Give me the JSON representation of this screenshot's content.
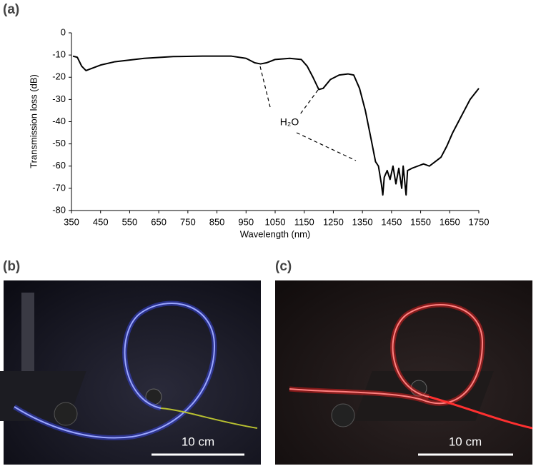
{
  "chart_data": {
    "type": "line",
    "panel_label": "(a)",
    "xlabel": "Wavelength (nm)",
    "ylabel": "Transmission loss (dB)",
    "annotation": "H₂O",
    "x": [
      355,
      370,
      385,
      400,
      420,
      450,
      500,
      600,
      700,
      800,
      900,
      950,
      980,
      1000,
      1020,
      1050,
      1100,
      1140,
      1160,
      1180,
      1200,
      1215,
      1240,
      1270,
      1300,
      1320,
      1340,
      1360,
      1380,
      1395,
      1405,
      1415,
      1420,
      1425,
      1435,
      1445,
      1455,
      1465,
      1475,
      1485,
      1490,
      1500,
      1505,
      1520,
      1540,
      1560,
      1580,
      1600,
      1620,
      1640,
      1660,
      1680,
      1700,
      1720,
      1750
    ],
    "color": "#000000",
    "values": [
      -10.5,
      -11,
      -15,
      -17,
      -16,
      -14.5,
      -13,
      -11.5,
      -10.7,
      -10.5,
      -10.5,
      -11.5,
      -13.5,
      -14,
      -13.5,
      -12,
      -11.5,
      -12,
      -15,
      -20,
      -25.5,
      -25,
      -21,
      -19,
      -18.5,
      -19,
      -25,
      -35,
      -48,
      -58,
      -60,
      -68,
      -73,
      -65,
      -62,
      -66,
      -60,
      -68,
      -61,
      -70,
      -60,
      -73,
      -62,
      -61,
      -60,
      -59,
      -60,
      -58,
      -56,
      -51,
      -45,
      -40,
      -35,
      -30,
      -25
    ],
    "xlim": [
      350,
      1750
    ],
    "xticks": [
      350,
      450,
      550,
      650,
      750,
      850,
      950,
      1050,
      1150,
      1250,
      1350,
      1450,
      1550,
      1650,
      1750
    ],
    "ylim": [
      -80,
      0
    ],
    "yticks": [
      0,
      -10,
      -20,
      -30,
      -40,
      -50,
      -60,
      -70,
      -80
    ]
  },
  "photos": [
    {
      "label": "(b)",
      "scale_bar": "10 cm"
    },
    {
      "label": "(c)",
      "scale_bar": "10 cm"
    }
  ]
}
